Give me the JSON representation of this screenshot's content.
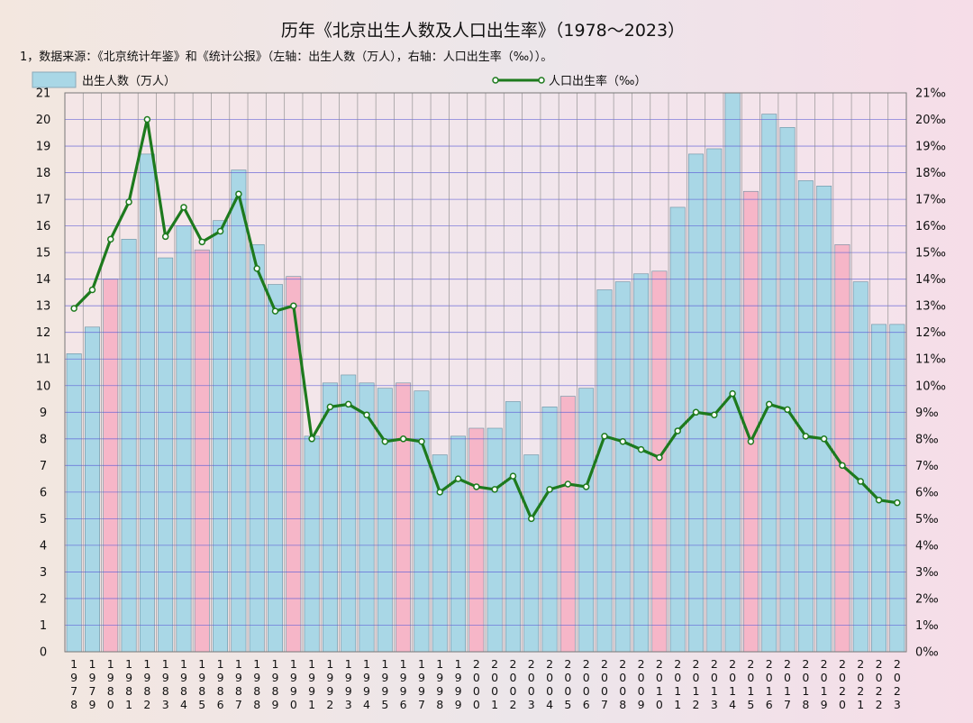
{
  "chart_data": {
    "type": "bar",
    "title": "历年《北京出生人数及人口出生率》（1978～2023）",
    "subtitle": "1，数据来源：《北京统计年鉴》和《统计公报》（左轴：出生人数（万人），右轴：人口出生率（‰））。",
    "categories": [
      "1978",
      "1979",
      "1980",
      "1981",
      "1982",
      "1983",
      "1984",
      "1985",
      "1986",
      "1987",
      "1988",
      "1989",
      "1990",
      "1991",
      "1992",
      "1993",
      "1994",
      "1995",
      "1996",
      "1997",
      "1998",
      "1999",
      "2000",
      "2001",
      "2002",
      "2003",
      "2004",
      "2005",
      "2006",
      "2007",
      "2008",
      "2009",
      "2010",
      "2011",
      "2012",
      "2013",
      "2014",
      "2015",
      "2016",
      "2017",
      "2018",
      "2019",
      "2020",
      "2021",
      "2022",
      "2023"
    ],
    "series": [
      {
        "name": "出生人数（万人）",
        "type": "bar",
        "axis": "left",
        "values": [
          11.2,
          12.2,
          14.0,
          15.5,
          18.7,
          14.8,
          16.0,
          15.1,
          16.2,
          18.1,
          15.3,
          13.8,
          14.1,
          8.1,
          10.1,
          10.4,
          10.1,
          9.9,
          10.1,
          9.8,
          7.4,
          8.1,
          8.4,
          8.4,
          9.4,
          7.4,
          9.2,
          9.6,
          9.9,
          13.6,
          13.9,
          14.2,
          14.3,
          16.7,
          18.7,
          18.9,
          21.0,
          17.3,
          20.2,
          19.7,
          17.7,
          17.5,
          15.3,
          13.9,
          12.3,
          12.3
        ],
        "highlight_years": [
          "1980",
          "1985",
          "1990",
          "1996",
          "2000",
          "2005",
          "2010",
          "2015",
          "2020"
        ]
      },
      {
        "name": "人口出生率（‰）",
        "type": "line",
        "axis": "right",
        "values": [
          12.9,
          13.6,
          15.5,
          16.9,
          20.0,
          15.6,
          16.7,
          15.4,
          15.8,
          17.2,
          14.4,
          12.8,
          13.0,
          8.0,
          9.2,
          9.3,
          8.9,
          7.9,
          8.0,
          7.9,
          6.0,
          6.5,
          6.2,
          6.1,
          6.6,
          5.0,
          6.1,
          6.3,
          6.2,
          8.1,
          7.9,
          7.6,
          7.3,
          8.3,
          9.0,
          8.9,
          9.7,
          7.9,
          9.3,
          9.1,
          8.1,
          8.0,
          7.0,
          6.4,
          5.7,
          5.6
        ]
      }
    ],
    "left_axis": {
      "min": 0,
      "max": 21,
      "step": 1,
      "ticks": [
        "0",
        "1",
        "2",
        "3",
        "4",
        "5",
        "6",
        "7",
        "8",
        "9",
        "10",
        "11",
        "12",
        "13",
        "14",
        "15",
        "16",
        "17",
        "18",
        "19",
        "20",
        "21"
      ]
    },
    "right_axis": {
      "min": 0,
      "max": 21,
      "step": 1,
      "ticks": [
        "0‰",
        "1‰",
        "2‰",
        "3‰",
        "4‰",
        "5‰",
        "6‰",
        "7‰",
        "8‰",
        "9‰",
        "10‰",
        "11‰",
        "12‰",
        "13‰",
        "14‰",
        "15‰",
        "16‰",
        "17‰",
        "18‰",
        "19‰",
        "20‰",
        "21‰"
      ]
    },
    "grid": true,
    "legend_position": "top",
    "colors": {
      "bar": "#a9d7e6",
      "bar_highlight": "#f6b6c8",
      "bar_stroke": "#6a8fa0",
      "line": "#1d7a1d",
      "grid_h": "#5b5bd6",
      "grid_v": "#8c8c8c"
    }
  }
}
